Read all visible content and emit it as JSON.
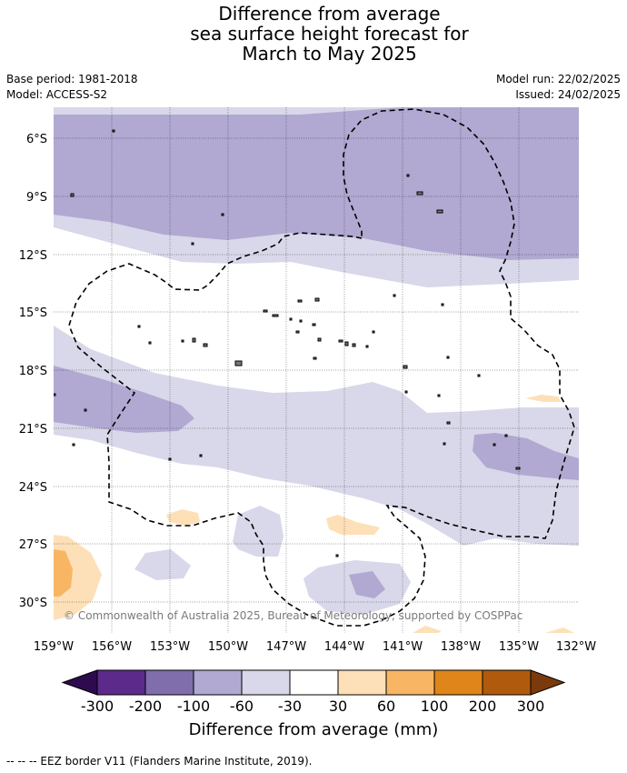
{
  "title": {
    "line1": "Difference from average",
    "line2": "sea surface height forecast for",
    "line3": "March to May 2025"
  },
  "meta": {
    "base_period": "Base period: 1981-2018",
    "model": "Model: ACCESS-S2",
    "model_run": "Model run: 22/02/2025",
    "issued": "Issued: 24/02/2025"
  },
  "map": {
    "lat_labels": [
      "6°S",
      "9°S",
      "12°S",
      "15°S",
      "18°S",
      "21°S",
      "24°S",
      "27°S",
      "30°S"
    ],
    "lon_labels": [
      "159°W",
      "156°W",
      "153°W",
      "150°W",
      "147°W",
      "144°W",
      "141°W",
      "138°W",
      "135°W",
      "132°W"
    ],
    "copyright": "© Commonwealth of Australia 2025, Bureau of Meteorology, supported by COSPPac",
    "grid": true,
    "eez_border": "dashed"
  },
  "colorbar": {
    "title": "Difference from average (mm)",
    "ticks": [
      "-300",
      "-200",
      "-100",
      "-60",
      "-30",
      "30",
      "60",
      "100",
      "200",
      "300"
    ],
    "colors": [
      "#2d0b4e",
      "#5b2a8a",
      "#7f6eab",
      "#b1a9d1",
      "#d8d8ea",
      "#ffffff",
      "#fde0b8",
      "#f8b664",
      "#e08519",
      "#b05a0d",
      "#7b3a0b"
    ]
  },
  "legend_note": "--  --  -- EEZ border V11 (Flanders Marine Institute, 2019)."
}
